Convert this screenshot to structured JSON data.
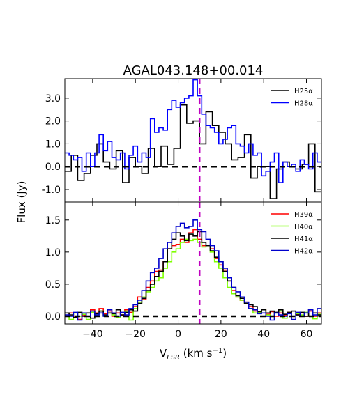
{
  "chart_data": {
    "type": "line",
    "title": "AGAL043.148+00.014",
    "xlabel": "V",
    "xlabel_sub": "LSR",
    "xlabel_units": " (km s",
    "xlabel_sup": "−1",
    "xlabel_close": ")",
    "ylabel": "Flux (Jy)",
    "xlim": [
      -53,
      67
    ],
    "x_ticks": [
      -40,
      -20,
      0,
      20,
      40,
      60
    ],
    "x_tick_labels": [
      "−40",
      "−20",
      "0",
      "20",
      "40",
      "60"
    ],
    "vline_x": 10,
    "vline_color": "#bf00bf",
    "zero_line_color": "#000000",
    "panels": [
      {
        "id": "top",
        "ylim": [
          -1.55,
          3.85
        ],
        "y_ticks": [
          -1.0,
          0.0,
          1.0,
          2.0,
          3.0
        ],
        "y_tick_labels": [
          "-1.0",
          "0.0",
          "1.0",
          "2.0",
          "3.0"
        ],
        "series": [
          {
            "name": "H25α",
            "color": "#000000",
            "x": [
              -53,
              -50,
              -47,
              -44,
              -41,
              -38,
              -35,
              -32,
              -29,
              -26,
              -23,
              -20,
              -17,
              -14,
              -11,
              -8,
              -5,
              -2,
              1,
              4,
              7,
              10,
              13,
              16,
              19,
              22,
              25,
              28,
              31,
              34,
              37,
              40,
              43,
              46,
              49,
              52,
              55,
              58,
              61,
              64,
              67
            ],
            "y": [
              -0.2,
              0.5,
              -0.6,
              -0.3,
              0.5,
              1.0,
              0.2,
              -0.1,
              0.7,
              -0.7,
              0.4,
              0.0,
              -0.3,
              0.8,
              0.0,
              0.9,
              0.1,
              0.8,
              2.7,
              1.9,
              2.0,
              1.0,
              2.4,
              1.8,
              1.5,
              1.0,
              0.3,
              0.4,
              1.4,
              -0.5,
              0.0,
              0.0,
              -1.4,
              -0.1,
              0.2,
              0.0,
              -0.1,
              0.1,
              1.0,
              -1.1,
              0.0
            ]
          },
          {
            "name": "H28α",
            "color": "#0000ff",
            "x": [
              -53,
              -51,
              -49,
              -47,
              -45,
              -43,
              -41,
              -39,
              -37,
              -35,
              -33,
              -31,
              -29,
              -27,
              -25,
              -23,
              -21,
              -19,
              -17,
              -15,
              -13,
              -11,
              -9,
              -7,
              -5,
              -3,
              -1,
              1,
              3,
              5,
              7,
              9,
              11,
              13,
              15,
              17,
              19,
              21,
              23,
              25,
              27,
              29,
              31,
              33,
              35,
              37,
              39,
              41,
              43,
              45,
              47,
              49,
              51,
              53,
              55,
              57,
              59,
              61,
              63,
              65,
              67
            ],
            "y": [
              0.6,
              0.5,
              0.3,
              0.4,
              -0.2,
              0.6,
              0.0,
              0.6,
              1.4,
              0.7,
              1.1,
              0.4,
              0.3,
              0.6,
              -0.1,
              0.5,
              0.9,
              0.2,
              0.6,
              0.4,
              2.1,
              1.5,
              1.7,
              1.6,
              2.5,
              2.9,
              2.6,
              2.8,
              3.0,
              3.1,
              3.8,
              3.1,
              2.3,
              1.8,
              1.7,
              1.5,
              1.0,
              1.2,
              1.7,
              1.8,
              1.0,
              0.9,
              0.6,
              1.0,
              0.5,
              0.6,
              -0.4,
              -0.2,
              0.2,
              0.6,
              -0.7,
              0.2,
              0.0,
              0.1,
              -0.2,
              0.3,
              0.1,
              -0.1,
              0.6,
              0.2,
              0.0
            ]
          }
        ]
      },
      {
        "id": "bottom",
        "ylim": [
          -0.12,
          1.78
        ],
        "y_ticks": [
          0.0,
          0.5,
          1.0,
          1.5
        ],
        "y_tick_labels": [
          "0.0",
          "0.5",
          "1.0",
          "1.5"
        ],
        "series": [
          {
            "name": "H39α",
            "color": "#ff0000",
            "x": [
              -53,
              -51,
              -49,
              -47,
              -45,
              -43,
              -41,
              -39,
              -37,
              -35,
              -33,
              -31,
              -29,
              -27,
              -25,
              -23,
              -21,
              -19,
              -17,
              -15,
              -13,
              -11,
              -9,
              -7,
              -5,
              -3,
              -1,
              1,
              3,
              5,
              7,
              9,
              11,
              13,
              15,
              17,
              19,
              21,
              23,
              25,
              27,
              29,
              31,
              33,
              35,
              37,
              39,
              41,
              43,
              45,
              47,
              49,
              51,
              53,
              55,
              57,
              59,
              61,
              63,
              65,
              67
            ],
            "y": [
              0.0,
              0.05,
              0.0,
              -0.05,
              0.02,
              0.0,
              0.1,
              0.05,
              0.12,
              0.04,
              0.08,
              0.0,
              0.05,
              0.02,
              0.1,
              0.06,
              0.15,
              0.3,
              0.26,
              0.45,
              0.55,
              0.7,
              0.72,
              0.85,
              1.05,
              1.1,
              1.12,
              1.2,
              1.15,
              1.3,
              1.35,
              1.2,
              1.1,
              1.1,
              1.05,
              0.9,
              0.8,
              0.72,
              0.55,
              0.4,
              0.3,
              0.25,
              0.22,
              0.15,
              0.08,
              0.05,
              0.1,
              0.03,
              0.07,
              0.0,
              0.05,
              0.02,
              0.06,
              0.0,
              0.03,
              0.05,
              0.0,
              0.08,
              0.0,
              0.05,
              0.0
            ]
          },
          {
            "name": "H40α",
            "color": "#7fff00",
            "x": [
              -53,
              -51,
              -49,
              -47,
              -45,
              -43,
              -41,
              -39,
              -37,
              -35,
              -33,
              -31,
              -29,
              -27,
              -25,
              -23,
              -21,
              -19,
              -17,
              -15,
              -13,
              -11,
              -9,
              -7,
              -5,
              -3,
              -1,
              1,
              3,
              5,
              7,
              9,
              11,
              13,
              15,
              17,
              19,
              21,
              23,
              25,
              27,
              29,
              31,
              33,
              35,
              37,
              39,
              41,
              43,
              45,
              47,
              49,
              51,
              53,
              55,
              57,
              59,
              61,
              63,
              65,
              67
            ],
            "y": [
              0.0,
              -0.05,
              0.05,
              0.0,
              0.03,
              -0.05,
              0.06,
              0.02,
              0.08,
              0.0,
              0.05,
              0.02,
              -0.02,
              0.05,
              0.08,
              -0.06,
              0.12,
              0.22,
              0.3,
              0.38,
              0.45,
              0.55,
              0.6,
              0.75,
              0.85,
              1.0,
              1.05,
              1.15,
              1.2,
              1.18,
              1.2,
              1.15,
              1.08,
              1.1,
              1.0,
              0.85,
              0.75,
              0.6,
              0.45,
              0.35,
              0.3,
              0.25,
              0.2,
              0.12,
              0.05,
              0.06,
              0.1,
              0.02,
              0.0,
              0.05,
              0.08,
              -0.03,
              0.05,
              0.0,
              0.04,
              0.02,
              0.06,
              0.0,
              -0.04,
              0.03,
              0.0
            ]
          },
          {
            "name": "H41α",
            "color": "#000000",
            "x": [
              -53,
              -51,
              -49,
              -47,
              -45,
              -43,
              -41,
              -39,
              -37,
              -35,
              -33,
              -31,
              -29,
              -27,
              -25,
              -23,
              -21,
              -19,
              -17,
              -15,
              -13,
              -11,
              -9,
              -7,
              -5,
              -3,
              -1,
              1,
              3,
              5,
              7,
              9,
              11,
              13,
              15,
              17,
              19,
              21,
              23,
              25,
              27,
              29,
              31,
              33,
              35,
              37,
              39,
              41,
              43,
              45,
              47,
              49,
              51,
              53,
              55,
              57,
              59,
              61,
              63,
              65,
              67
            ],
            "y": [
              0.05,
              0.02,
              -0.02,
              0.06,
              0.0,
              0.05,
              -0.03,
              0.04,
              0.08,
              0.02,
              0.05,
              0.04,
              0.1,
              0.02,
              0.06,
              0.1,
              0.08,
              0.2,
              0.28,
              0.4,
              0.5,
              0.62,
              0.7,
              0.85,
              1.05,
              1.2,
              1.3,
              1.25,
              1.18,
              1.28,
              1.25,
              1.32,
              1.15,
              1.1,
              1.02,
              0.92,
              0.85,
              0.7,
              0.55,
              0.45,
              0.32,
              0.28,
              0.2,
              0.18,
              0.15,
              0.07,
              0.1,
              0.05,
              0.08,
              0.06,
              0.1,
              0.03,
              0.06,
              0.08,
              0.02,
              0.06,
              0.0,
              0.1,
              0.05,
              0.02,
              0.05
            ]
          },
          {
            "name": "H42α",
            "color": "#0000cc",
            "x": [
              -53,
              -51,
              -49,
              -47,
              -45,
              -43,
              -41,
              -39,
              -37,
              -35,
              -33,
              -31,
              -29,
              -27,
              -25,
              -23,
              -21,
              -19,
              -17,
              -15,
              -13,
              -11,
              -9,
              -7,
              -5,
              -3,
              -1,
              1,
              3,
              5,
              7,
              9,
              11,
              13,
              15,
              17,
              19,
              21,
              23,
              25,
              27,
              29,
              31,
              33,
              35,
              37,
              39,
              41,
              43,
              45,
              47,
              49,
              51,
              53,
              55,
              57,
              59,
              61,
              63,
              65,
              67
            ],
            "y": [
              0.02,
              0.0,
              0.06,
              -0.06,
              0.05,
              0.0,
              0.08,
              0.02,
              0.05,
              0.0,
              0.1,
              0.05,
              0.0,
              0.06,
              0.02,
              0.12,
              0.18,
              0.25,
              0.4,
              0.55,
              0.68,
              0.75,
              0.9,
              1.05,
              1.15,
              1.3,
              1.4,
              1.45,
              1.38,
              1.4,
              1.5,
              1.35,
              1.32,
              1.2,
              1.1,
              1.02,
              0.85,
              0.75,
              0.6,
              0.45,
              0.38,
              0.3,
              0.22,
              0.12,
              0.1,
              0.04,
              0.05,
              0.0,
              -0.06,
              0.05,
              0.02,
              0.0,
              0.04,
              -0.05,
              0.06,
              0.0,
              0.05,
              0.1,
              0.02,
              0.12,
              0.15
            ]
          }
        ]
      }
    ]
  }
}
